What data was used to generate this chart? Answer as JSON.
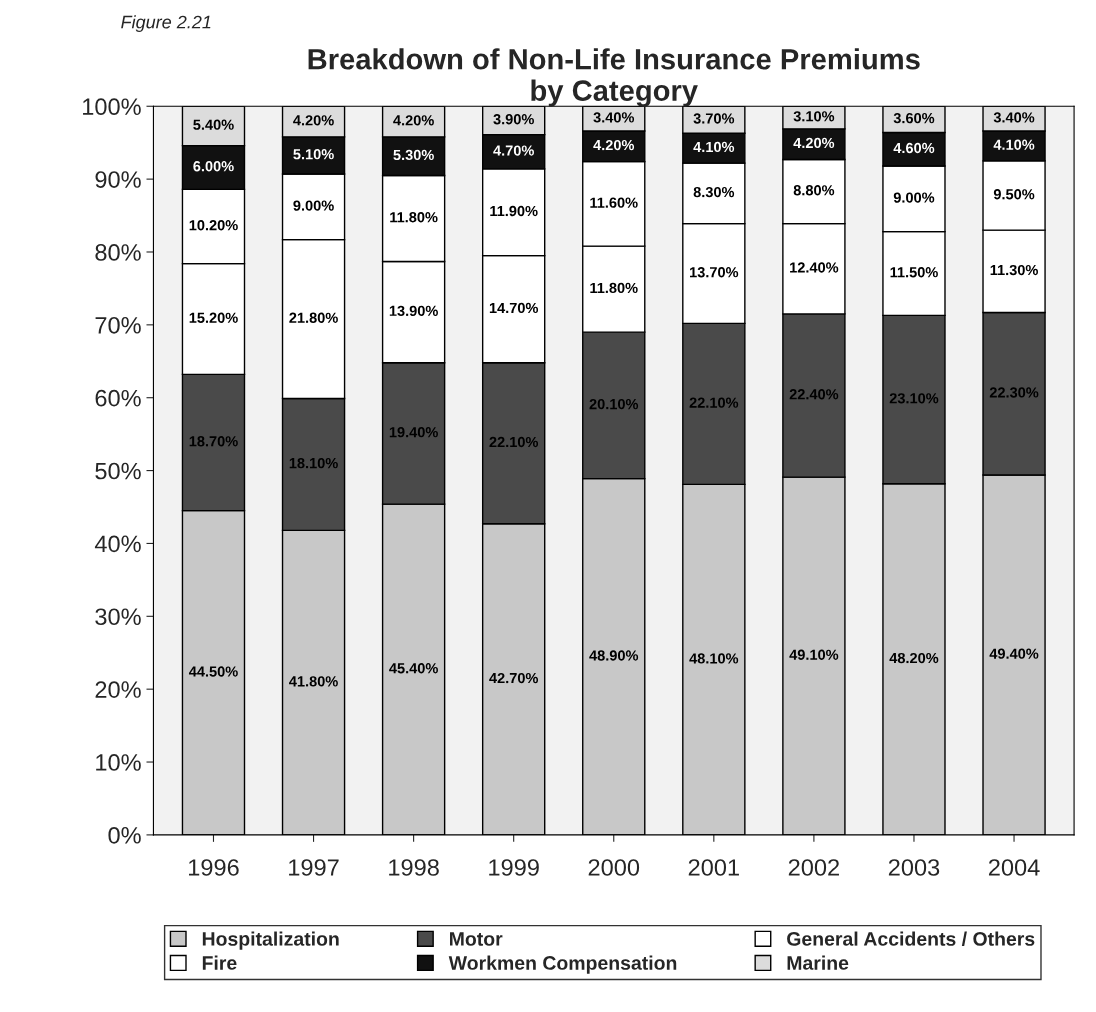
{
  "chart_data": {
    "type": "bar",
    "stacked": true,
    "title": "Breakdown of Non-Life Insurance Premiums\nby Category",
    "annotations": [
      "Figure 2.21"
    ],
    "categories": [
      "1996",
      "1997",
      "1998",
      "1999",
      "2000",
      "2001",
      "2002",
      "2003",
      "2004"
    ],
    "series": [
      {
        "name": "Hospitalization",
        "color": "#c8c8c8",
        "values": [
          44.5,
          41.8,
          45.4,
          42.7,
          48.9,
          48.1,
          49.1,
          48.2,
          49.4
        ],
        "value_labels": [
          "44.50%",
          "41.80%",
          "45.40%",
          "42.70%",
          "48.90%",
          "48.10%",
          "49.10%",
          "48.20%",
          "49.40%"
        ]
      },
      {
        "name": "Motor",
        "color": "#4a4a4a",
        "values": [
          18.7,
          18.1,
          19.4,
          22.1,
          20.1,
          22.1,
          22.4,
          23.1,
          22.3
        ],
        "value_labels": [
          "18.70%",
          "18.10%",
          "19.40%",
          "22.10%",
          "20.10%",
          "22.10%",
          "22.40%",
          "23.10%",
          "22.30%"
        ]
      },
      {
        "name": "General Accidents / Others",
        "color": "#ffffff",
        "values": [
          15.2,
          21.8,
          13.9,
          14.7,
          11.8,
          13.7,
          12.4,
          11.5,
          11.3
        ],
        "value_labels": [
          "15.20%",
          "21.80%",
          "13.90%",
          "14.70%",
          "11.80%",
          "13.70%",
          "12.40%",
          "11.50%",
          "11.30%"
        ]
      },
      {
        "name": "Fire",
        "color": "#ffffff",
        "values": [
          10.2,
          9.0,
          11.8,
          11.9,
          11.6,
          8.3,
          8.8,
          9.0,
          9.5
        ],
        "value_labels": [
          "10.20%",
          "9.00%",
          "11.80%",
          "11.90%",
          "11.60%",
          "8.30%",
          "8.80%",
          "9.00%",
          "9.50%"
        ]
      },
      {
        "name": "Workmen Compensation",
        "color": "#111111",
        "values": [
          6.0,
          5.1,
          5.3,
          4.7,
          4.2,
          4.1,
          4.2,
          4.6,
          4.1
        ],
        "value_labels": [
          "6.00%",
          "5.10%",
          "5.30%",
          "4.70%",
          "4.20%",
          "4.10%",
          "4.20%",
          "4.60%",
          "4.10%"
        ]
      },
      {
        "name": "Marine",
        "color": "#dcdcdc",
        "values": [
          5.4,
          4.2,
          4.2,
          3.9,
          3.4,
          3.7,
          3.1,
          3.6,
          3.4
        ],
        "value_labels": [
          "5.40%",
          "4.20%",
          "4.20%",
          "3.90%",
          "3.40%",
          "3.70%",
          "3.10%",
          "3.60%",
          "3.40%"
        ]
      }
    ],
    "ylim": [
      0,
      100
    ],
    "yticks": [
      {
        "value": 0,
        "label": "0%"
      },
      {
        "value": 10,
        "label": "10%"
      },
      {
        "value": 20,
        "label": "20%"
      },
      {
        "value": 30,
        "label": "30%"
      },
      {
        "value": 40,
        "label": "40%"
      },
      {
        "value": 50,
        "label": "50%"
      },
      {
        "value": 60,
        "label": "60%"
      },
      {
        "value": 70,
        "label": "70%"
      },
      {
        "value": 80,
        "label": "80%"
      },
      {
        "value": 90,
        "label": "90%"
      },
      {
        "value": 100,
        "label": "100%"
      }
    ],
    "grid": false,
    "legend": "bottom"
  }
}
